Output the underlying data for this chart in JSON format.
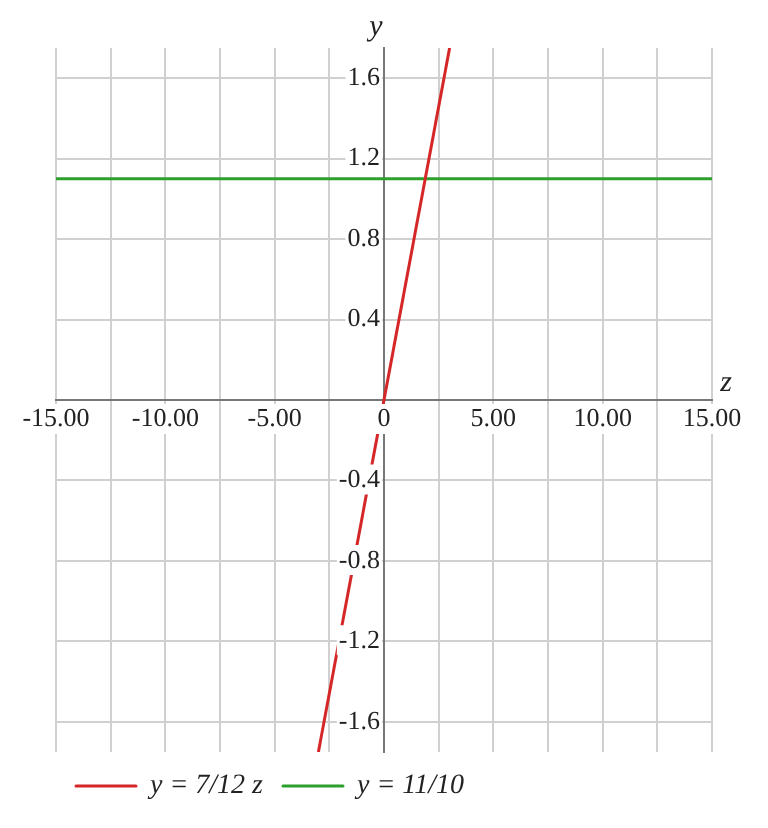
{
  "chart_data": {
    "type": "line",
    "xlabel": "z",
    "ylabel": "y",
    "xlim": [
      -15,
      15
    ],
    "ylim": [
      -1.75,
      1.75
    ],
    "xticks": [
      {
        "value": -15,
        "label": "-15.00"
      },
      {
        "value": -12.5,
        "label": null
      },
      {
        "value": -10,
        "label": "-10.00"
      },
      {
        "value": -7.5,
        "label": null
      },
      {
        "value": -5,
        "label": "-5.00"
      },
      {
        "value": -2.5,
        "label": null
      },
      {
        "value": 0,
        "label": "0"
      },
      {
        "value": 2.5,
        "label": null
      },
      {
        "value": 5,
        "label": "5.00"
      },
      {
        "value": 7.5,
        "label": null
      },
      {
        "value": 10,
        "label": "10.00"
      },
      {
        "value": 12.5,
        "label": null
      },
      {
        "value": 15,
        "label": "15.00"
      }
    ],
    "yticks": [
      -1.6,
      -1.2,
      -0.8,
      -0.4,
      {
        "value": 0,
        "label": null
      },
      0.4,
      0.8,
      1.2,
      1.6
    ],
    "series": [
      {
        "name": "y = 7/12 z",
        "color": "#d62728",
        "x": [
          -3,
          3
        ],
        "values": [
          -1.75,
          1.75
        ]
      },
      {
        "name": "y = 11/10",
        "color": "#2ca02c",
        "x": [
          -15,
          15
        ],
        "values": [
          1.1,
          1.1
        ]
      }
    ],
    "grid": true,
    "legend": "bottom left",
    "marker": "none",
    "line_style": "solid"
  }
}
